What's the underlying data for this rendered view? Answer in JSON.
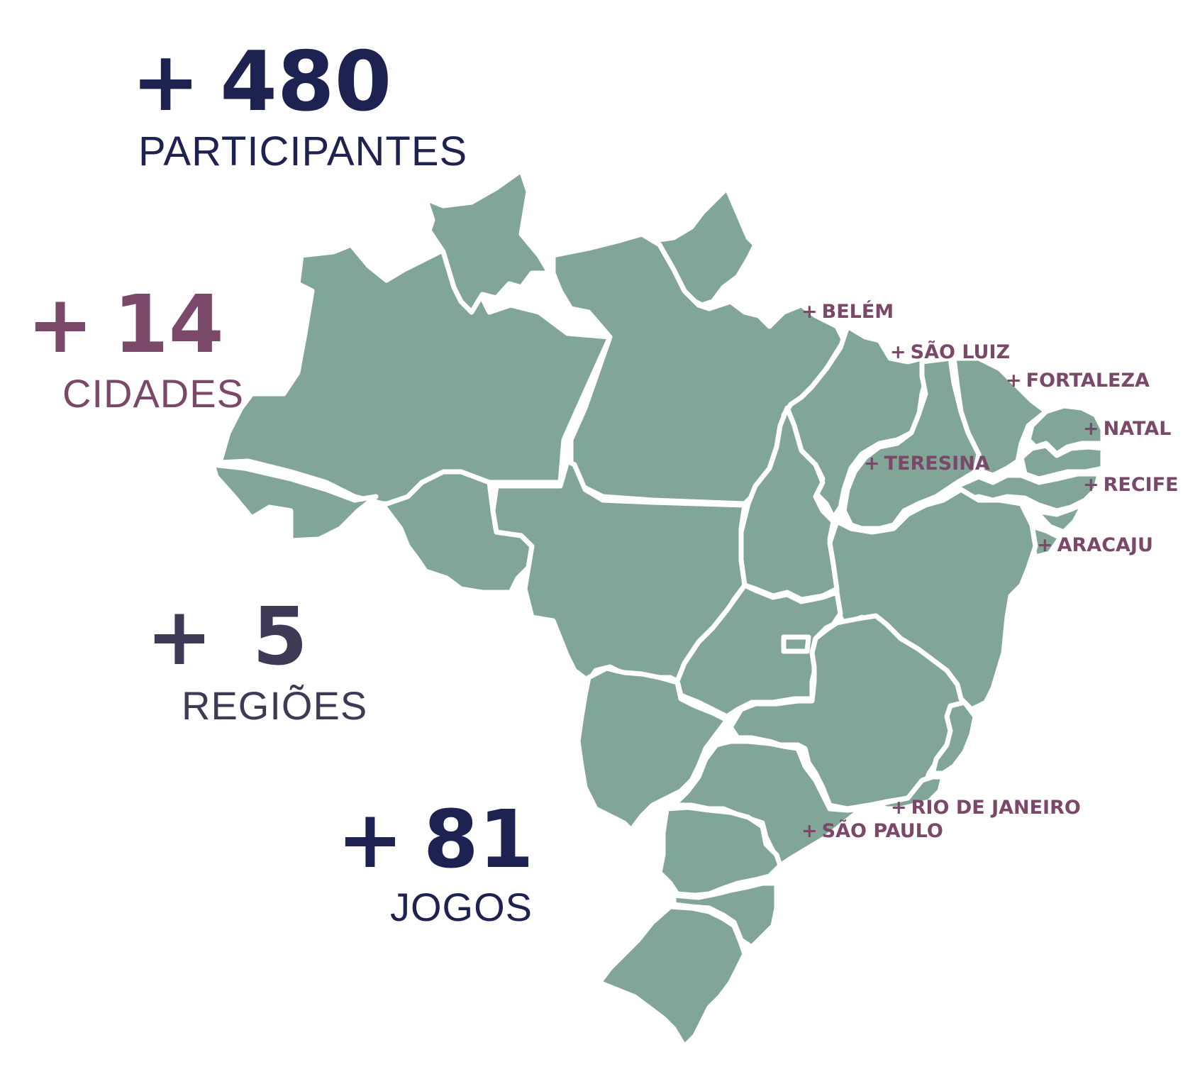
{
  "stats": {
    "participantes": {
      "plus": "+",
      "value": "480",
      "label": "PARTICIPANTES",
      "color": "#1e2250"
    },
    "cidades": {
      "plus": "+",
      "value": "14",
      "label": "CIDADES",
      "color": "#7a4869"
    },
    "regioes": {
      "plus": "+",
      "value": "5",
      "label": "REGIÕES",
      "color": "#3c3a55"
    },
    "jogos": {
      "plus": "+",
      "value": "81",
      "label": "JOGOS",
      "color": "#1e2250"
    }
  },
  "map": {
    "fill_color": "#81a698",
    "border_color": "#ffffff"
  },
  "cities": [
    {
      "plus": "+",
      "name": "BELÉM"
    },
    {
      "plus": "+",
      "name": "SÃO LUIZ"
    },
    {
      "plus": "+",
      "name": "FORTALEZA"
    },
    {
      "plus": "+",
      "name": "NATAL"
    },
    {
      "plus": "+",
      "name": "TERESINA"
    },
    {
      "plus": "+",
      "name": "RECIFE"
    },
    {
      "plus": "+",
      "name": "ARACAJU"
    },
    {
      "plus": "+",
      "name": "RIO DE JANEIRO"
    },
    {
      "plus": "+",
      "name": "SÃO PAULO"
    }
  ],
  "city_color": "#7a4869"
}
